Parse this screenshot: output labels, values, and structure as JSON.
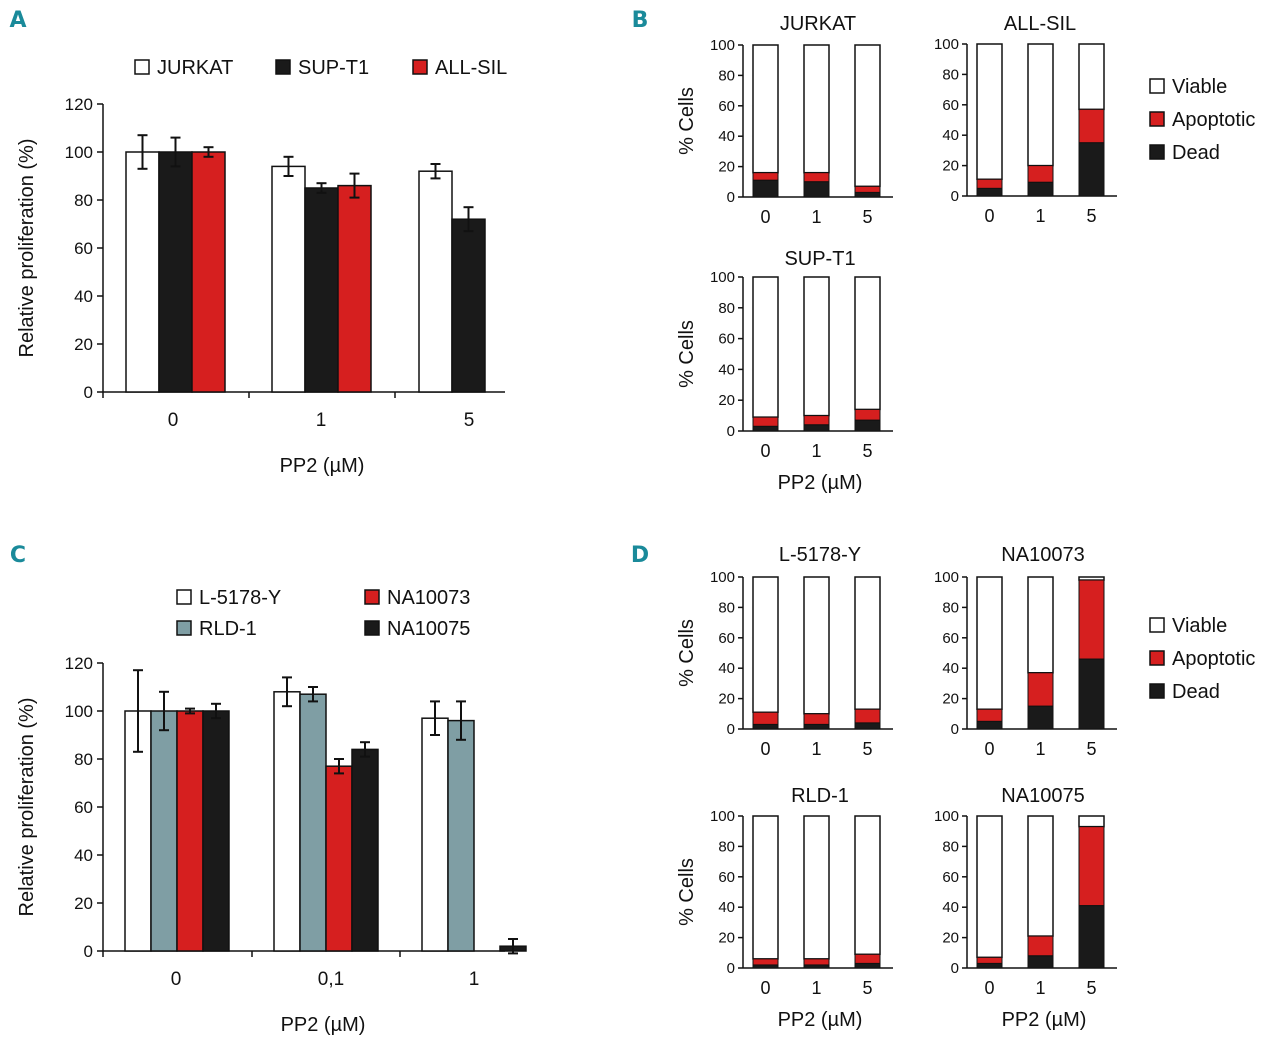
{
  "colors": {
    "white": "#ffffff",
    "black": "#1a1a1a",
    "red": "#d61f1f",
    "gray": "#7f9ea4",
    "letter": "#1a8a9a"
  },
  "chart_data": [
    {
      "panel": "A",
      "type": "bar",
      "title": "",
      "ylabel": "Relative proliferation (%)",
      "xlabel": "PP2 (µM)",
      "ylim": [
        0,
        120
      ],
      "yticks": [
        0,
        20,
        40,
        60,
        80,
        100,
        120
      ],
      "categories": [
        "0",
        "1",
        "5"
      ],
      "series": [
        {
          "name": "JURKAT",
          "color": "white",
          "values": [
            100,
            94,
            92
          ],
          "errors": [
            7,
            4,
            3
          ]
        },
        {
          "name": "SUP-T1",
          "color": "black",
          "values": [
            100,
            85,
            72
          ],
          "errors": [
            6,
            2,
            5
          ]
        },
        {
          "name": "ALL-SIL",
          "color": "red",
          "values": [
            100,
            86,
            null
          ],
          "errors": [
            2,
            5,
            null
          ]
        }
      ],
      "legend": [
        "JURKAT",
        "SUP-T1",
        "ALL-SIL"
      ]
    },
    {
      "panel": "C",
      "type": "bar",
      "title": "",
      "ylabel": "Relative proliferation (%)",
      "xlabel": "PP2 (µM)",
      "ylim": [
        0,
        120
      ],
      "yticks": [
        0,
        20,
        40,
        60,
        80,
        100,
        120
      ],
      "categories": [
        "0",
        "0,1",
        "1"
      ],
      "series": [
        {
          "name": "L-5178-Y",
          "color": "white",
          "values": [
            100,
            108,
            97
          ],
          "errors": [
            17,
            6,
            7
          ]
        },
        {
          "name": "RLD-1",
          "color": "gray",
          "values": [
            100,
            107,
            96
          ],
          "errors": [
            8,
            3,
            8
          ]
        },
        {
          "name": "NA10073",
          "color": "red",
          "values": [
            100,
            77,
            null
          ],
          "errors": [
            1,
            3,
            null
          ]
        },
        {
          "name": "NA10075",
          "color": "black",
          "values": [
            100,
            84,
            2
          ],
          "errors": [
            3,
            3,
            3
          ]
        }
      ],
      "legend": [
        "L-5178-Y",
        "NA10073",
        "RLD-1",
        "NA10075"
      ]
    },
    {
      "panel": "B",
      "type": "bar",
      "stacked": true,
      "ylabel": "% Cells",
      "xlabel": "PP2 (µM)",
      "ylim": [
        0,
        100
      ],
      "yticks": [
        0,
        20,
        40,
        60,
        80,
        100
      ],
      "categories": [
        "0",
        "1",
        "5"
      ],
      "legend": [
        "Viable",
        "Apoptotic",
        "Dead"
      ],
      "subplots": [
        {
          "title": "JURKAT",
          "dead": [
            11,
            10,
            3
          ],
          "apoptotic": [
            5,
            6,
            4
          ]
        },
        {
          "title": "ALL-SIL",
          "dead": [
            5,
            9,
            35
          ],
          "apoptotic": [
            6,
            11,
            22
          ]
        },
        {
          "title": "SUP-T1",
          "dead": [
            3,
            4,
            7
          ],
          "apoptotic": [
            6,
            6,
            7
          ]
        }
      ]
    },
    {
      "panel": "D",
      "type": "bar",
      "stacked": true,
      "ylabel": "% Cells",
      "xlabel": "PP2 (µM)",
      "ylim": [
        0,
        100
      ],
      "yticks": [
        0,
        20,
        40,
        60,
        80,
        100
      ],
      "categories": [
        "0",
        "1",
        "5"
      ],
      "legend": [
        "Viable",
        "Apoptotic",
        "Dead"
      ],
      "subplots": [
        {
          "title": "L-5178-Y",
          "dead": [
            3,
            3,
            4
          ],
          "apoptotic": [
            8,
            7,
            9
          ]
        },
        {
          "title": "NA10073",
          "dead": [
            5,
            15,
            46
          ],
          "apoptotic": [
            8,
            22,
            52
          ]
        },
        {
          "title": "RLD-1",
          "dead": [
            2,
            2,
            3
          ],
          "apoptotic": [
            4,
            4,
            6
          ]
        },
        {
          "title": "NA10075",
          "dead": [
            3,
            8,
            41
          ],
          "apoptotic": [
            4,
            13,
            52
          ]
        }
      ]
    }
  ],
  "panel_letters": [
    "A",
    "B",
    "C",
    "D"
  ]
}
